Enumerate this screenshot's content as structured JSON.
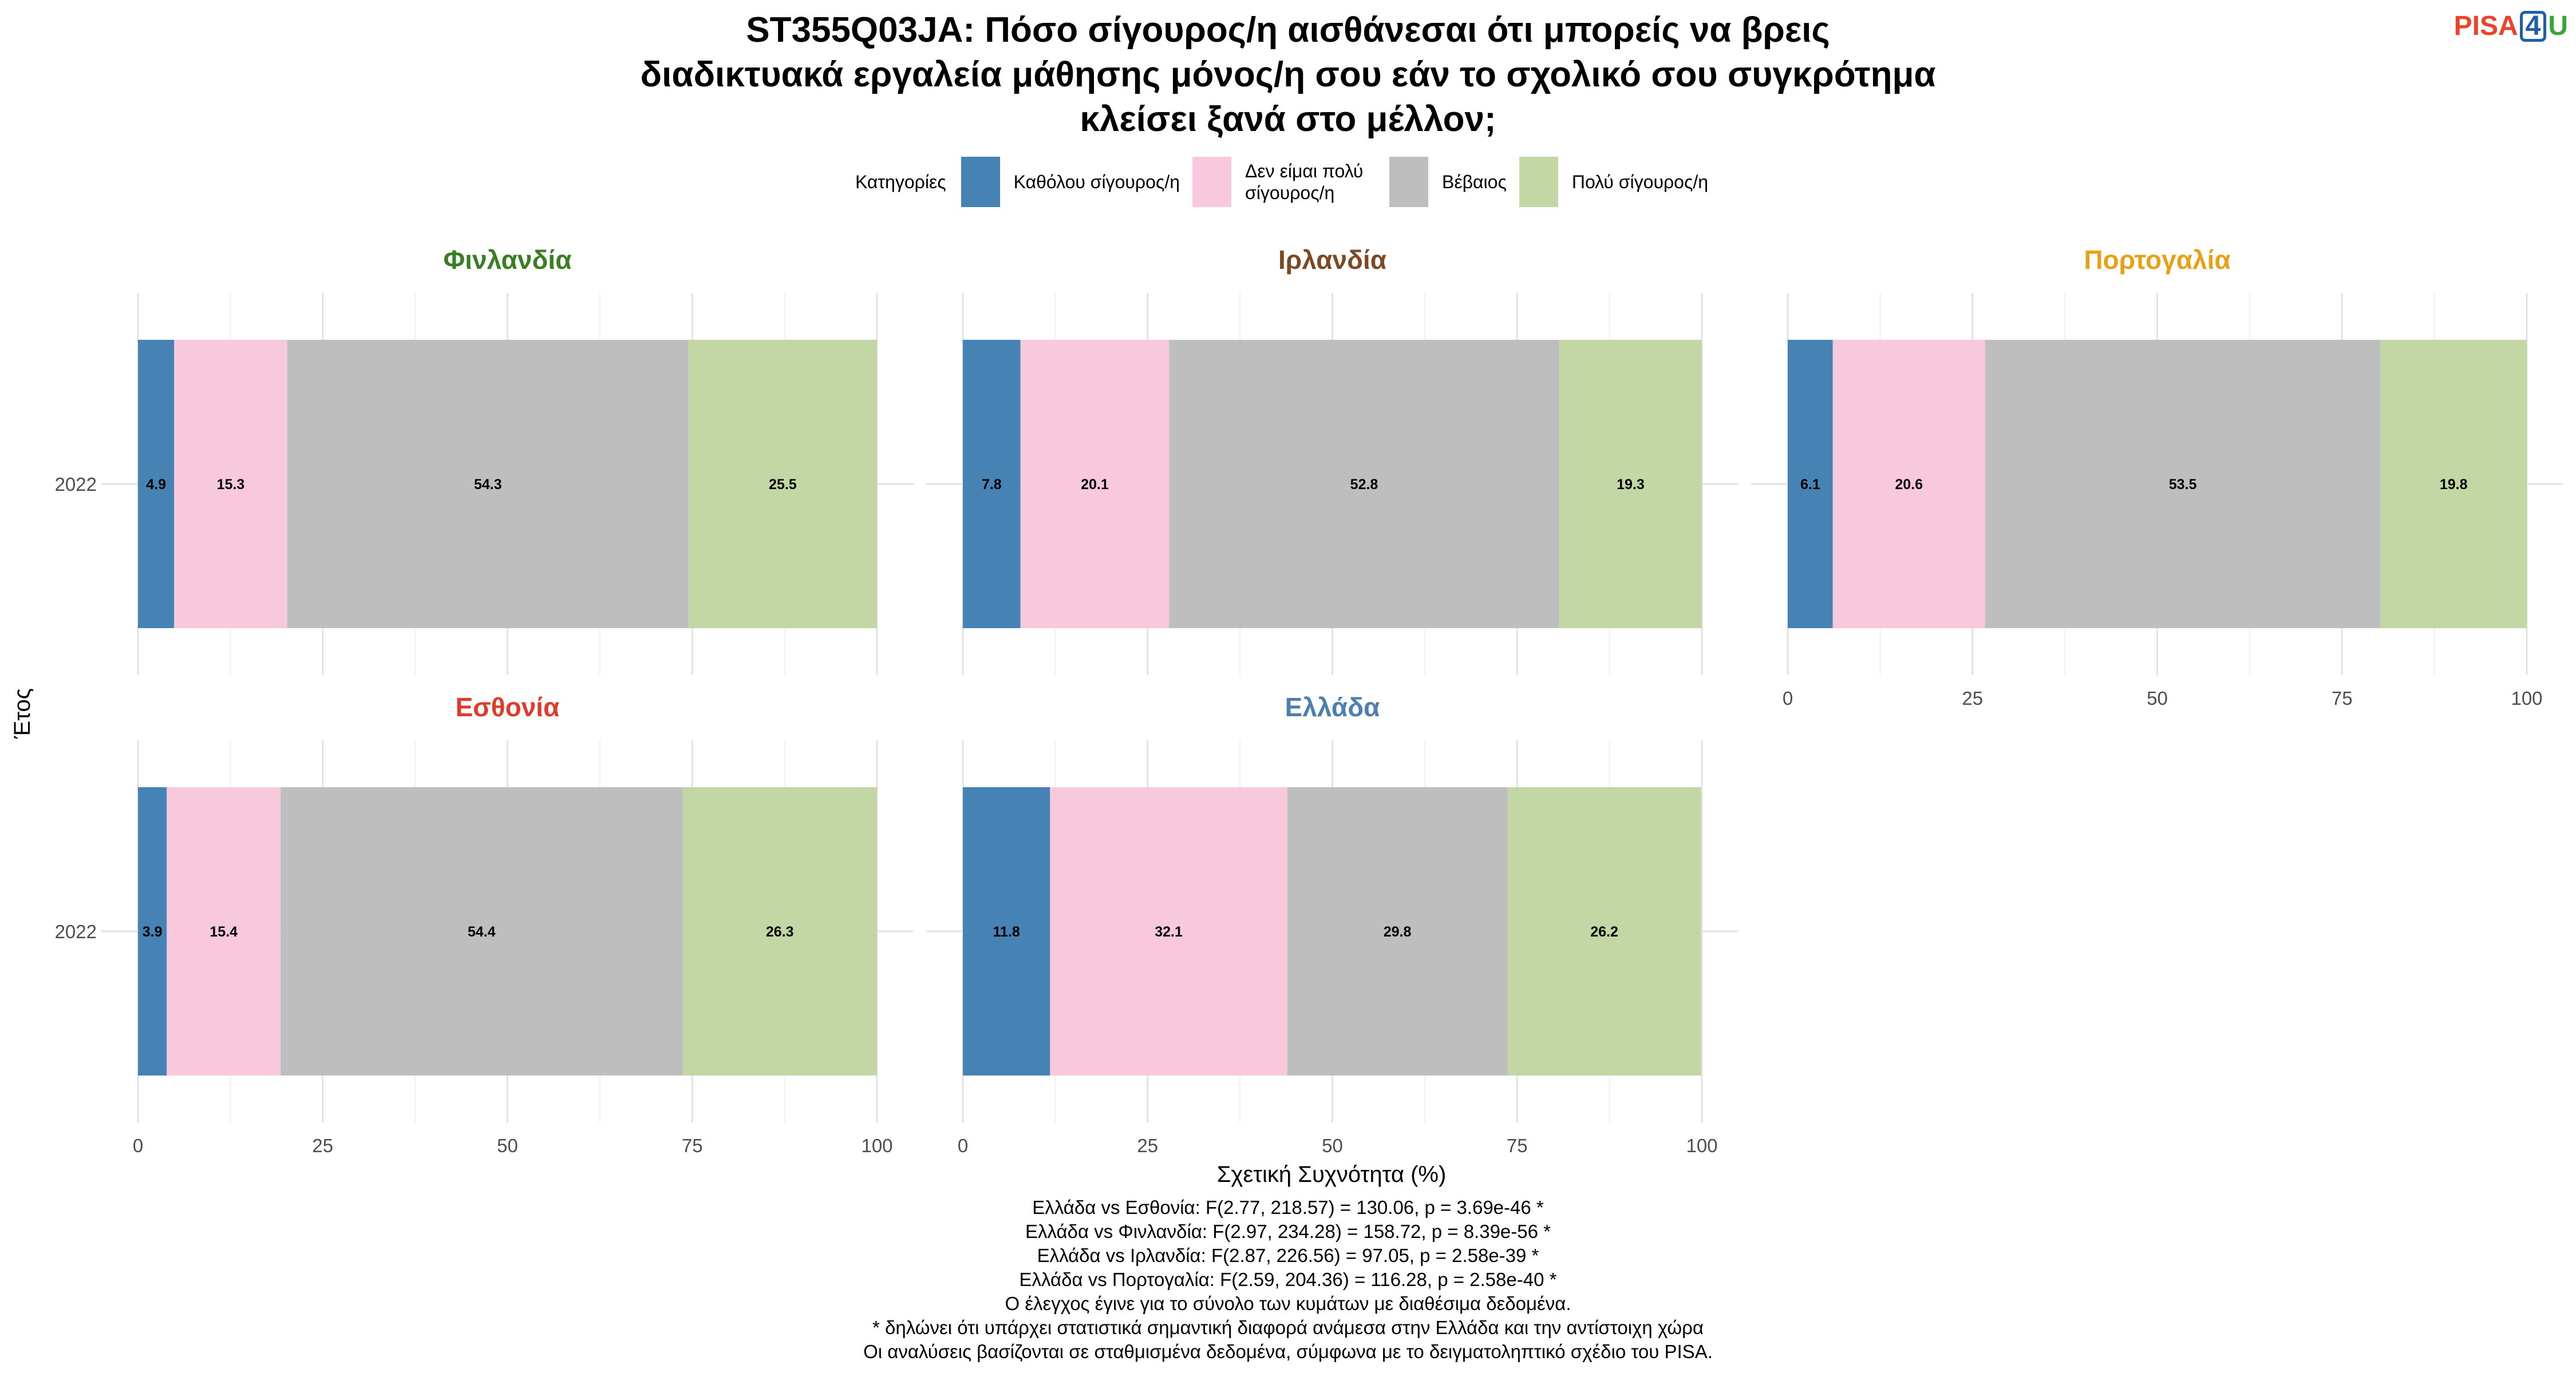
{
  "title_lines": [
    "ST355Q03JA: Πόσο σίγουρος/η αισθάνεσαι ότι μπορείς να βρεις",
    "διαδικτυακά εργαλεία μάθησης μόνος/η σου εάν το σχολικό σου συγκρότημα",
    "κλείσει ξανά στο μέλλον;"
  ],
  "logo": {
    "pisa": "PISA",
    "four": "4",
    "u": "U"
  },
  "legend": {
    "title": "Κατηγορίες",
    "items": [
      {
        "label": "Καθόλου σίγουρος/η",
        "color": "#4682b4"
      },
      {
        "label": "Δεν είμαι πολύ σίγουρος/η",
        "color": "#f8c8dc"
      },
      {
        "label": "Βέβαιος",
        "color": "#bebebe"
      },
      {
        "label": "Πολύ σίγουρος/η",
        "color": "#c3d7a4"
      }
    ]
  },
  "chart_data": {
    "type": "bar",
    "orientation": "horizontal",
    "stacked": true,
    "xlabel": "Σχετική Συχνότητα (%)",
    "ylabel": "Έτος",
    "xlim": [
      0,
      100
    ],
    "xticks": [
      0,
      25,
      50,
      75,
      100
    ],
    "grid": true,
    "legend_position": "top",
    "categories": [
      "Καθόλου σίγουρος/η",
      "Δεν είμαι πολύ σίγουρος/η",
      "Βέβαιος",
      "Πολύ σίγουρος/η"
    ],
    "panels": [
      {
        "name": "Φινλανδία",
        "title_color": "#3a7d22",
        "year": "2022",
        "values": [
          4.9,
          15.3,
          54.3,
          25.5
        ]
      },
      {
        "name": "Ιρλανδία",
        "title_color": "#7b4a24",
        "year": "2022",
        "values": [
          7.8,
          20.1,
          52.8,
          19.3
        ]
      },
      {
        "name": "Πορτογαλία",
        "title_color": "#e6a117",
        "year": "2022",
        "values": [
          6.1,
          20.6,
          53.5,
          19.8
        ]
      },
      {
        "name": "Εσθονία",
        "title_color": "#e03a2a",
        "year": "2022",
        "values": [
          3.9,
          15.4,
          54.4,
          26.3
        ]
      },
      {
        "name": "Ελλάδα",
        "title_color": "#4a7fb0",
        "year": "2022",
        "values": [
          11.8,
          32.1,
          29.8,
          26.2
        ]
      }
    ]
  },
  "notes": [
    "Ελλάδα vs Εσθονία: F(2.77, 218.57) = 130.06, p = 3.69e-46 *",
    "Ελλάδα vs Φινλανδία: F(2.97, 234.28) = 158.72, p = 8.39e-56 *",
    "Ελλάδα vs Ιρλανδία: F(2.87, 226.56) = 97.05, p = 2.58e-39 *",
    "Ελλάδα vs Πορτογαλία: F(2.59, 204.36) = 116.28, p = 2.58e-40 *",
    "Ο έλεγχος έγινε για το σύνολο των κυμάτων με διαθέσιμα δεδομένα.",
    "* δηλώνει ότι υπάρχει στατιστικά σημαντική διαφορά ανάμεσα στην Ελλάδα και την αντίστοιχη χώρα",
    "Οι αναλύσεις βασίζονται σε σταθμισμένα δεδομένα, σύμφωνα με το δειγματοληπτικό σχέδιο του PISA."
  ]
}
